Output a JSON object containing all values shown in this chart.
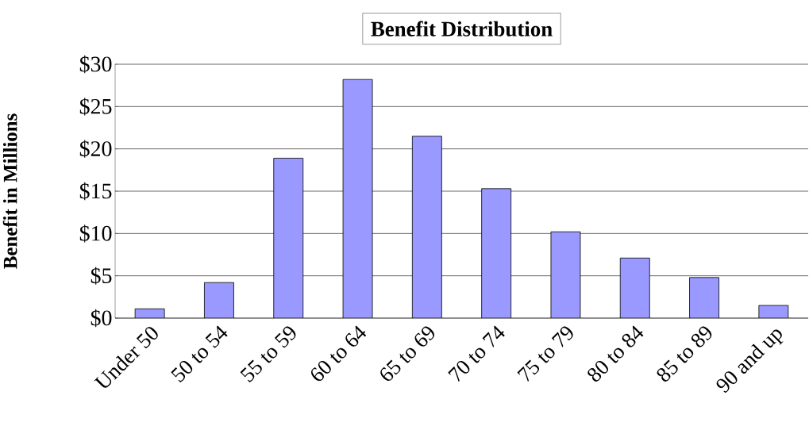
{
  "chart_data": {
    "type": "bar",
    "title": "Benefit Distribution",
    "ylabel": "Benefit in Millions",
    "categories": [
      "Under 50",
      "50 to 54",
      "55 to 59",
      "60 to 64",
      "65 to 69",
      "70 to 74",
      "75 to 79",
      "80 to 84",
      "85 to 89",
      "90 and up"
    ],
    "values": [
      1.1,
      4.2,
      18.9,
      28.2,
      21.5,
      15.3,
      10.2,
      7.1,
      4.8,
      1.5
    ],
    "color": "#9999ff",
    "ylim": [
      0,
      30
    ],
    "yticks": [
      {
        "value": 0,
        "label": "$0"
      },
      {
        "value": 5,
        "label": "$5"
      },
      {
        "value": 10,
        "label": "$10"
      },
      {
        "value": 15,
        "label": "$15"
      },
      {
        "value": 20,
        "label": "$20"
      },
      {
        "value": 25,
        "label": "$25"
      },
      {
        "value": 30,
        "label": "$30"
      }
    ],
    "grid": "y"
  }
}
